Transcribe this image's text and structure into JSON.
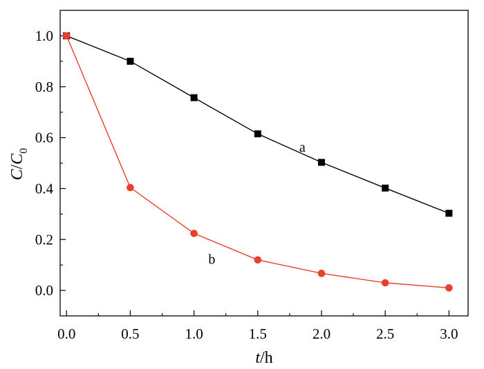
{
  "chart_data": {
    "type": "line",
    "xlabel": {
      "var": "t",
      "unit": "/h"
    },
    "ylabel": {
      "var1": "C",
      "sep": "/",
      "var2": "C",
      "sub": "0"
    },
    "xlim": [
      -0.05,
      3.15
    ],
    "ylim": [
      -0.1,
      1.1
    ],
    "xticks": [
      0.0,
      0.5,
      1.0,
      1.5,
      2.0,
      2.5,
      3.0
    ],
    "xtick_labels": [
      "0.0",
      "0.5",
      "1.0",
      "1.5",
      "2.0",
      "2.5",
      "3.0"
    ],
    "yticks": [
      0.0,
      0.2,
      0.4,
      0.6,
      0.8,
      1.0
    ],
    "ytick_labels": [
      "0.0",
      "0.2",
      "0.4",
      "0.6",
      "0.8",
      "1.0"
    ],
    "grid": false,
    "series": [
      {
        "name": "a",
        "marker": "square",
        "color": "#000000",
        "x": [
          0.0,
          0.5,
          1.0,
          1.5,
          2.0,
          2.5,
          3.0
        ],
        "y": [
          1.0,
          0.9,
          0.757,
          0.615,
          0.503,
          0.402,
          0.303
        ]
      },
      {
        "name": "b",
        "marker": "circle",
        "color": "#e8402a",
        "x": [
          0.0,
          0.5,
          1.0,
          1.5,
          2.0,
          2.5,
          3.0
        ],
        "y": [
          1.0,
          0.404,
          0.224,
          0.12,
          0.067,
          0.03,
          0.01
        ]
      }
    ],
    "annotations": [
      {
        "text": "a",
        "x": 1.85,
        "y": 0.545
      },
      {
        "text": "b",
        "x": 1.14,
        "y": 0.105
      }
    ]
  }
}
